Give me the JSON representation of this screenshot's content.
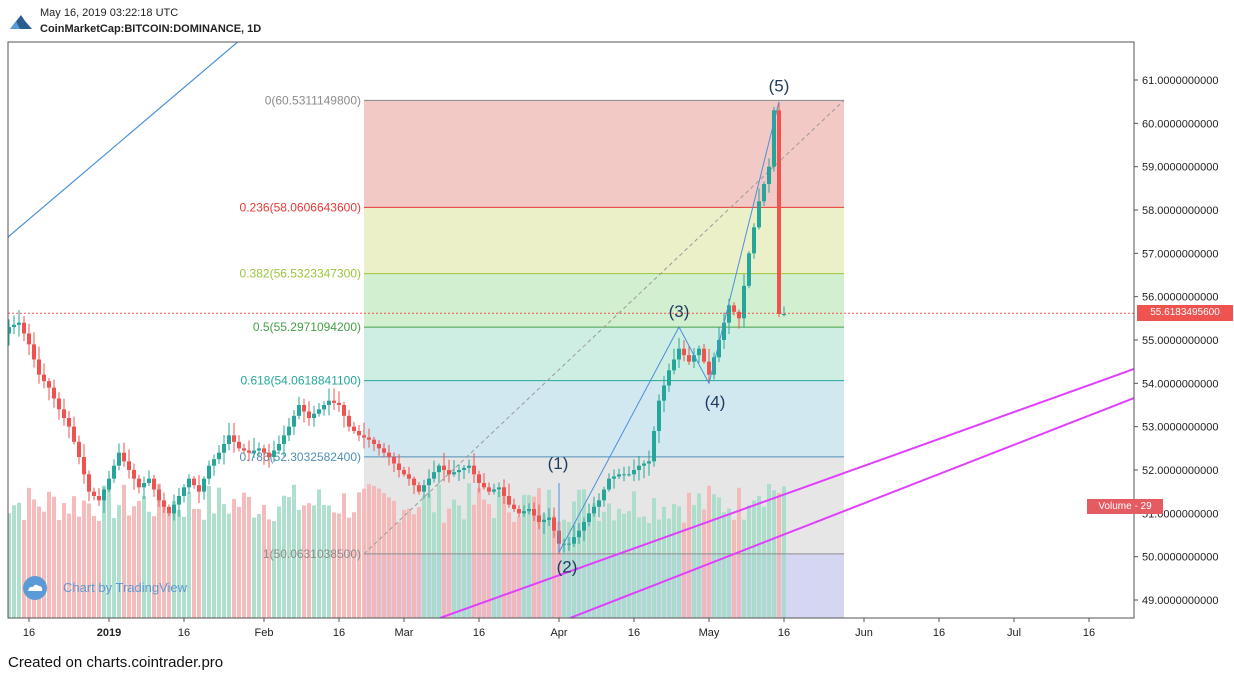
{
  "header": {
    "timestamp": "May 16, 2019 03:22:18 UTC",
    "symbol": "CoinMarketCap:BITCOIN:DOMINANCE, 1D"
  },
  "footer": {
    "text": "Created on charts.cointrader.pro"
  },
  "watermark": {
    "text": "Chart by TradingView"
  },
  "volume_tag": {
    "text": "Volume - 29"
  },
  "last_price_tag": {
    "text": "55.6183495600"
  },
  "colors": {
    "up": "#26a69a",
    "down": "#ef5350",
    "vol_up": "#a6dcc8",
    "vol_down": "#f5b4b4",
    "fib_line_0": "#8c8c8c",
    "fib_line_0236": "#e53935",
    "fib_line_0382": "#9bc43c",
    "fib_line_05": "#43a047",
    "fib_line_0618": "#26a69a",
    "fib_line_0786": "#4f8fb7",
    "fib_line_1": "#8c8c8c",
    "channel": "#e040fb",
    "trend": "#4a90d9",
    "wave_label": "#1f3a5f"
  },
  "chart_data": {
    "type": "candlestick",
    "y_range": [
      48.5,
      61.5
    ],
    "y_ticks": [
      {
        "value": 49,
        "label": "49.0000000000"
      },
      {
        "value": 50,
        "label": "50.0000000000"
      },
      {
        "value": 51,
        "label": "51.0000000000"
      },
      {
        "value": 52,
        "label": "52.0000000000"
      },
      {
        "value": 53,
        "label": "53.0000000000"
      },
      {
        "value": 54,
        "label": "54.0000000000"
      },
      {
        "value": 55,
        "label": "55.0000000000"
      },
      {
        "value": 56,
        "label": "56.0000000000"
      },
      {
        "value": 57,
        "label": "57.0000000000"
      },
      {
        "value": 58,
        "label": "58.0000000000"
      },
      {
        "value": 59,
        "label": "59.0000000000"
      },
      {
        "value": 60,
        "label": "60.0000000000"
      },
      {
        "value": 61,
        "label": "61.0000000000"
      }
    ],
    "x_ticks": [
      {
        "date": "2018-12-16",
        "label": "16",
        "bold": false
      },
      {
        "date": "2019-01-01",
        "label": "2019",
        "bold": true
      },
      {
        "date": "2019-01-16",
        "label": "16",
        "bold": false
      },
      {
        "date": "2019-02-01",
        "label": "Feb",
        "bold": false
      },
      {
        "date": "2019-02-16",
        "label": "16",
        "bold": false
      },
      {
        "date": "2019-03-01",
        "label": "Mar",
        "bold": false
      },
      {
        "date": "2019-03-16",
        "label": "16",
        "bold": false
      },
      {
        "date": "2019-04-01",
        "label": "Apr",
        "bold": false
      },
      {
        "date": "2019-04-16",
        "label": "16",
        "bold": false
      },
      {
        "date": "2019-05-01",
        "label": "May",
        "bold": false
      },
      {
        "date": "2019-05-16",
        "label": "16",
        "bold": false
      },
      {
        "date": "2019-06-01",
        "label": "Jun",
        "bold": false
      },
      {
        "date": "2019-06-16",
        "label": "16",
        "bold": false
      },
      {
        "date": "2019-07-01",
        "label": "Jul",
        "bold": false
      },
      {
        "date": "2019-07-16",
        "label": "16",
        "bold": false
      }
    ],
    "close_anchors": [
      [
        "2018-12-09",
        55.1
      ],
      [
        "2018-12-11",
        55.0
      ],
      [
        "2018-12-13",
        55.3
      ],
      [
        "2018-12-15",
        55.4
      ],
      [
        "2018-12-17",
        54.9
      ],
      [
        "2018-12-19",
        54.2
      ],
      [
        "2018-12-21",
        53.9
      ],
      [
        "2018-12-23",
        53.4
      ],
      [
        "2018-12-25",
        53.0
      ],
      [
        "2018-12-27",
        52.3
      ],
      [
        "2018-12-29",
        51.5
      ],
      [
        "2018-12-31",
        51.3
      ],
      [
        "2019-01-02",
        51.8
      ],
      [
        "2019-01-04",
        52.4
      ],
      [
        "2019-01-06",
        52.0
      ],
      [
        "2019-01-08",
        51.6
      ],
      [
        "2019-01-10",
        51.8
      ],
      [
        "2019-01-12",
        51.3
      ],
      [
        "2019-01-14",
        51.0
      ],
      [
        "2019-01-16",
        51.4
      ],
      [
        "2019-01-18",
        51.8
      ],
      [
        "2019-01-20",
        51.5
      ],
      [
        "2019-01-22",
        52.1
      ],
      [
        "2019-01-24",
        52.4
      ],
      [
        "2019-01-26",
        52.8
      ],
      [
        "2019-01-28",
        52.5
      ],
      [
        "2019-01-30",
        52.4
      ],
      [
        "2019-02-01",
        52.5
      ],
      [
        "2019-02-03",
        52.3
      ],
      [
        "2019-02-05",
        52.6
      ],
      [
        "2019-02-07",
        53.0
      ],
      [
        "2019-02-09",
        53.5
      ],
      [
        "2019-02-11",
        53.2
      ],
      [
        "2019-02-13",
        53.4
      ],
      [
        "2019-02-15",
        53.6
      ],
      [
        "2019-02-17",
        53.5
      ],
      [
        "2019-02-19",
        53.0
      ],
      [
        "2019-02-21",
        52.8
      ],
      [
        "2019-02-23",
        52.7
      ],
      [
        "2019-02-25",
        52.5
      ],
      [
        "2019-02-27",
        52.3
      ],
      [
        "2019-03-01",
        52.0
      ],
      [
        "2019-03-03",
        51.8
      ],
      [
        "2019-03-05",
        51.5
      ],
      [
        "2019-03-07",
        51.8
      ],
      [
        "2019-03-09",
        52.1
      ],
      [
        "2019-03-11",
        51.9
      ],
      [
        "2019-03-13",
        52.0
      ],
      [
        "2019-03-15",
        52.1
      ],
      [
        "2019-03-17",
        51.7
      ],
      [
        "2019-03-19",
        51.5
      ],
      [
        "2019-03-21",
        51.6
      ],
      [
        "2019-03-23",
        51.2
      ],
      [
        "2019-03-25",
        51.0
      ],
      [
        "2019-03-27",
        51.1
      ],
      [
        "2019-03-29",
        50.8
      ],
      [
        "2019-03-31",
        50.9
      ],
      [
        "2019-04-02",
        50.3
      ],
      [
        "2019-04-04",
        50.3
      ],
      [
        "2019-04-06",
        50.6
      ],
      [
        "2019-04-08",
        51.0
      ],
      [
        "2019-04-10",
        51.3
      ],
      [
        "2019-04-12",
        51.8
      ],
      [
        "2019-04-14",
        51.9
      ],
      [
        "2019-04-16",
        51.9
      ],
      [
        "2019-04-18",
        52.1
      ],
      [
        "2019-04-20",
        52.2
      ],
      [
        "2019-04-22",
        53.6
      ],
      [
        "2019-04-24",
        54.3
      ],
      [
        "2019-04-26",
        54.8
      ],
      [
        "2019-04-28",
        54.5
      ],
      [
        "2019-04-30",
        54.8
      ],
      [
        "2019-05-02",
        54.2
      ],
      [
        "2019-05-04",
        55.0
      ],
      [
        "2019-05-06",
        55.8
      ],
      [
        "2019-05-08",
        55.5
      ],
      [
        "2019-05-10",
        57.0
      ],
      [
        "2019-05-12",
        58.2
      ],
      [
        "2019-05-14",
        59.0
      ],
      [
        "2019-05-15",
        60.3
      ],
      [
        "2019-05-16",
        55.6
      ]
    ],
    "fibonacci": {
      "start_date": "2019-02-21",
      "end_date": "2019-05-28",
      "levels": [
        {
          "ratio": 0,
          "price": 60.53111498,
          "label": "0(60.5311149800)",
          "color": "#8c8c8c",
          "fill": "#f3c9c6"
        },
        {
          "ratio": 0.236,
          "price": 58.06066436,
          "label": "0.236(58.0606643600)",
          "color": "#e53935",
          "fill": "#ecf0c9"
        },
        {
          "ratio": 0.382,
          "price": 56.53233473,
          "label": "0.382(56.5323347300)",
          "color": "#9bc43c",
          "fill": "#d2efd0"
        },
        {
          "ratio": 0.5,
          "price": 55.29710942,
          "label": "0.5(55.2971094200)",
          "color": "#43a047",
          "fill": "#cfeee3"
        },
        {
          "ratio": 0.618,
          "price": 54.06188411,
          "label": "0.618(54.0618841100)",
          "color": "#26a69a",
          "fill": "#d2e8f1"
        },
        {
          "ratio": 0.786,
          "price": 52.30325824,
          "label": "0.786(52.3032582400)",
          "color": "#4f8fb7",
          "fill": "#e6e6e6"
        },
        {
          "ratio": 1,
          "price": 50.06310385,
          "label": "1(50.0631038500)",
          "color": "#8c8c8c",
          "fill": "#d4d6f2"
        }
      ]
    },
    "elliott_waves": [
      {
        "label": "(1)",
        "date": "2019-04-01",
        "price": 51.7
      },
      {
        "label": "(2)",
        "date": "2019-04-01",
        "price": 50.1
      },
      {
        "label": "(3)",
        "date": "2019-04-25",
        "price": 55.3
      },
      {
        "label": "(4)",
        "date": "2019-05-01",
        "price": 54.0
      },
      {
        "label": "(5)",
        "date": "2019-05-15",
        "price": 60.5
      }
    ],
    "last_price": 55.61834956
  }
}
